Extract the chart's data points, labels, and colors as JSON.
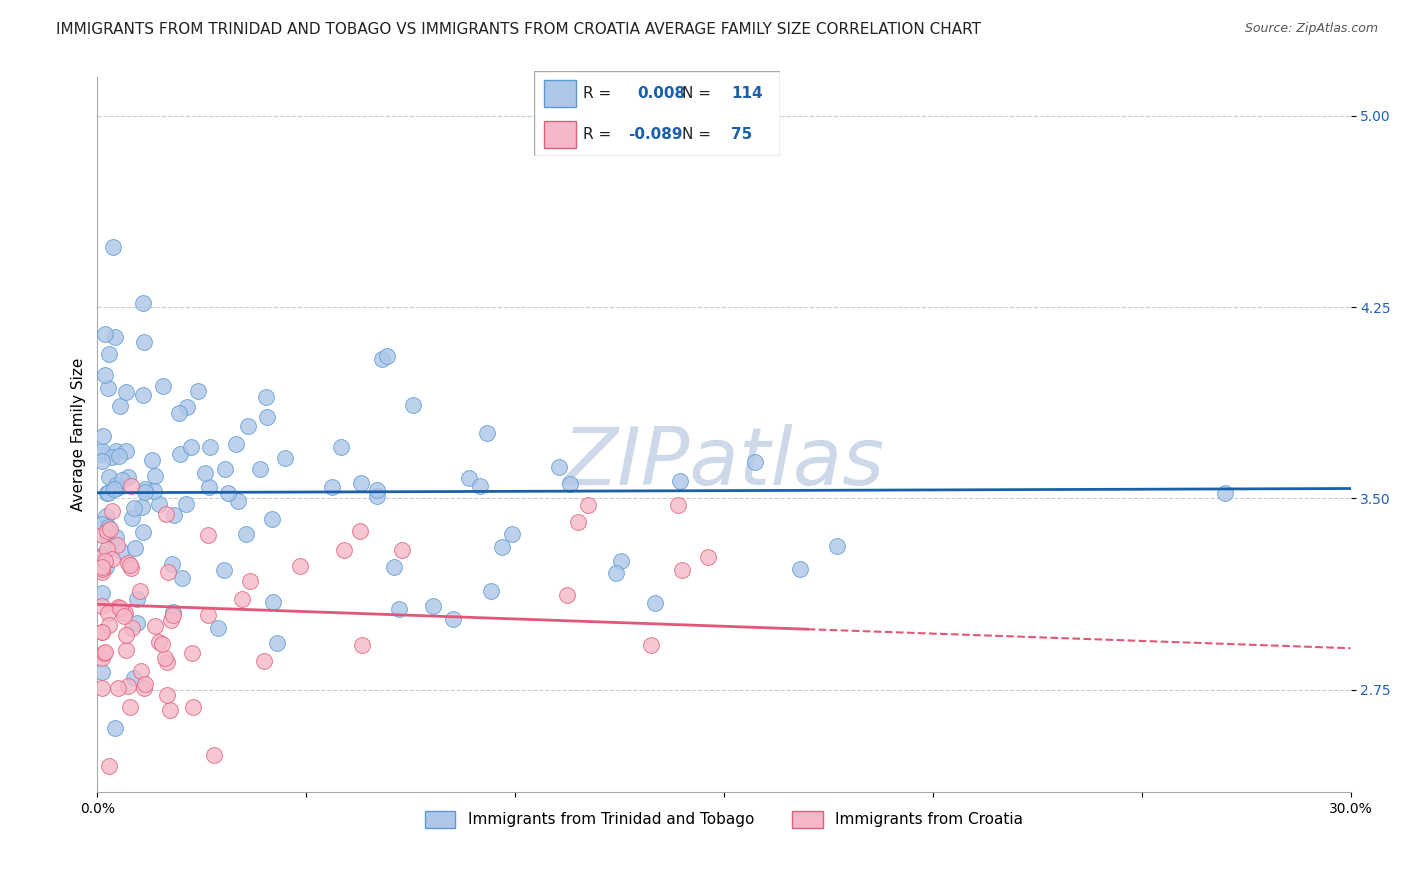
{
  "title": "IMMIGRANTS FROM TRINIDAD AND TOBAGO VS IMMIGRANTS FROM CROATIA AVERAGE FAMILY SIZE CORRELATION CHART",
  "source": "Source: ZipAtlas.com",
  "ylabel": "Average Family Size",
  "xlabel": "",
  "xlim": [
    0.0,
    0.3
  ],
  "ylim": [
    2.35,
    5.15
  ],
  "yticks": [
    2.75,
    3.5,
    4.25,
    5.0
  ],
  "xticks": [
    0.0,
    0.05,
    0.1,
    0.15,
    0.2,
    0.25,
    0.3
  ],
  "series": [
    {
      "name": "Immigrants from Trinidad and Tobago",
      "R": 0.008,
      "N": 114,
      "color": "#aec6e8",
      "edge_color": "#5b9bd5",
      "trend_color": "#1a5fa8",
      "trend_solid": true
    },
    {
      "name": "Immigrants from Croatia",
      "R": -0.089,
      "N": 75,
      "color": "#f5b8c8",
      "edge_color": "#e0607a",
      "trend_color": "#e05878",
      "trend_solid": false
    }
  ],
  "watermark": "ZIPatlas",
  "watermark_color": "#cdd8e8",
  "background_color": "#ffffff",
  "grid_color": "#cccccc",
  "title_fontsize": 11,
  "axis_label_fontsize": 11,
  "tick_fontsize": 10,
  "legend_fontsize": 11,
  "tick_label_color": "#2060b0"
}
